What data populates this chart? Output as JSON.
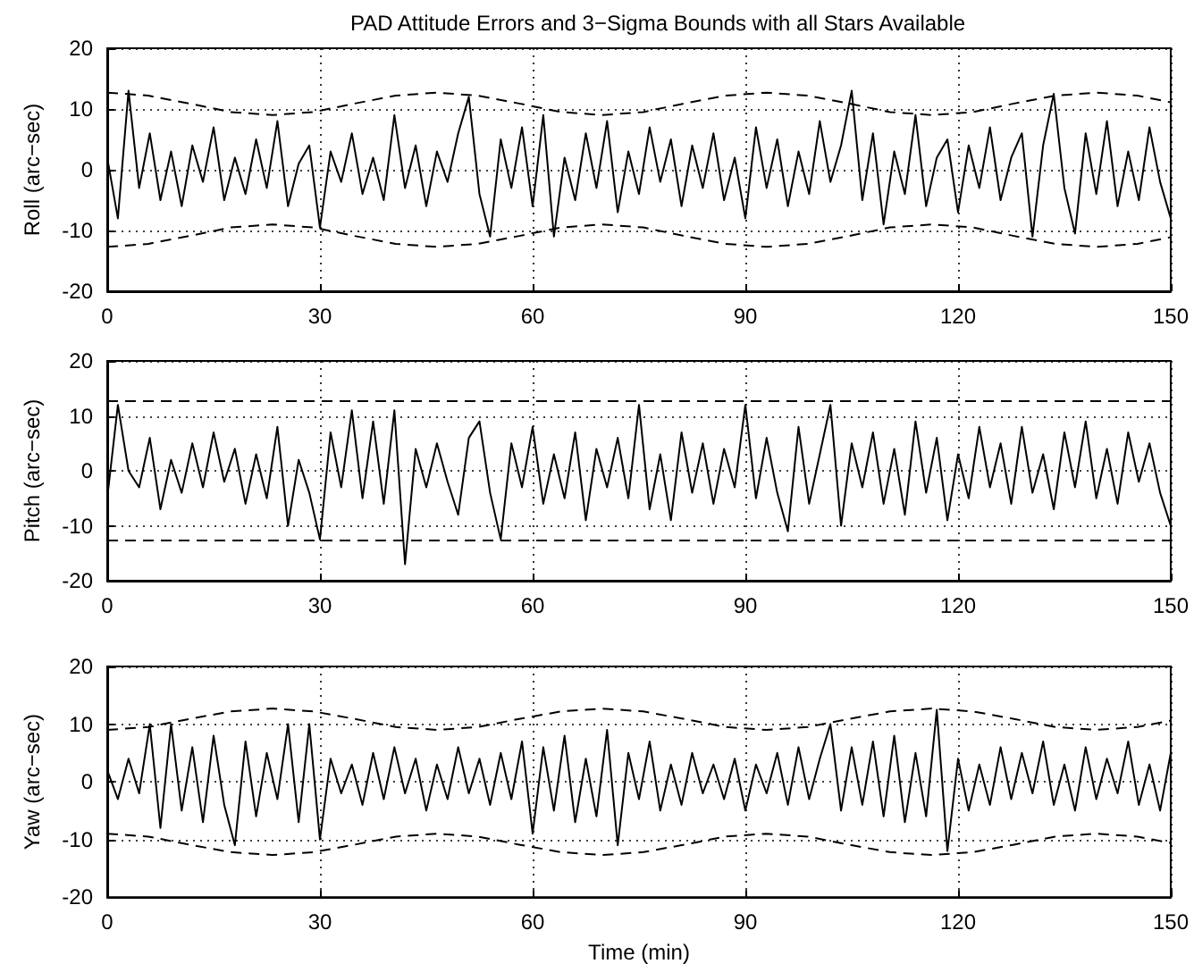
{
  "chart_data": [
    {
      "type": "line",
      "title": "PAD Attitude Errors and 3−Sigma Bounds with all Stars Available",
      "ylabel": "Roll (arc−sec)",
      "xlim": [
        0,
        150
      ],
      "xticks": [
        0,
        30,
        60,
        90,
        120,
        150
      ],
      "ylim": [
        -20,
        20
      ],
      "yticks": [
        -20,
        -10,
        0,
        10,
        20
      ],
      "grid": true,
      "marker": "none",
      "x": [
        0,
        1.5,
        3,
        4.5,
        6,
        7.5,
        9,
        10.5,
        12,
        13.5,
        15,
        16.5,
        18,
        19.5,
        21,
        22.5,
        24,
        25.5,
        27,
        28.5,
        30,
        31.5,
        33,
        34.5,
        36,
        37.5,
        39,
        40.5,
        42,
        43.5,
        45,
        46.5,
        48,
        49.5,
        51,
        52.5,
        54,
        55.5,
        57,
        58.5,
        60,
        61.5,
        63,
        64.5,
        66,
        67.5,
        69,
        70.5,
        72,
        73.5,
        75,
        76.5,
        78,
        79.5,
        81,
        82.5,
        84,
        85.5,
        87,
        88.5,
        90,
        91.5,
        93,
        94.5,
        96,
        97.5,
        99,
        100.5,
        102,
        103.5,
        105,
        106.5,
        108,
        109.5,
        111,
        112.5,
        114,
        115.5,
        117,
        118.5,
        120,
        121.5,
        123,
        124.5,
        126,
        127.5,
        129,
        130.5,
        132,
        133.5,
        135,
        136.5,
        138,
        139.5,
        141,
        142.5,
        144,
        145.5,
        147,
        148.5,
        150
      ],
      "series": [
        {
          "color": "#000000",
          "line_style": "solid",
          "values": [
            2,
            -8,
            13,
            -3,
            6,
            -5,
            3,
            -6,
            4,
            -2,
            7,
            -5,
            2,
            -4,
            5,
            -3,
            8,
            -6,
            1,
            4,
            -9.5,
            3,
            -2,
            6,
            -4,
            2,
            -5,
            9,
            -3,
            4,
            -6,
            3,
            -2,
            6,
            12,
            -4,
            -11,
            5,
            -3,
            7,
            -6,
            9,
            -11,
            2,
            -5,
            6,
            -3,
            8,
            -7,
            3,
            -4,
            7,
            -2,
            5,
            -6,
            4,
            -3,
            6,
            -5,
            2,
            -8,
            7,
            -3,
            5,
            -6,
            3,
            -4,
            8,
            -2,
            4,
            13,
            -5,
            6,
            -9,
            3,
            -4,
            9,
            -6,
            2,
            5,
            -7,
            4,
            -3,
            7,
            -5,
            2,
            6,
            -11,
            4,
            12.5,
            -3,
            -10.5,
            6,
            -4,
            8,
            -6,
            3,
            -5,
            7,
            -2,
            -8
          ]
        },
        {
          "color": "#000000",
          "line_style": "dashed",
          "x": [
            0,
            5.8,
            11.6,
            17.4,
            23.3,
            29.1,
            34.9,
            40.7,
            46.5,
            52.3,
            58.1,
            64,
            69.8,
            75.6,
            81.4,
            87.2,
            93,
            98.8,
            104.6,
            110.4,
            116.3,
            122.1,
            127.9,
            133.7,
            139.5,
            145.3,
            150
          ],
          "values": [
            12.7,
            12.2,
            10.9,
            9.5,
            9,
            9.5,
            10.9,
            12.2,
            12.7,
            12.2,
            10.9,
            9.5,
            9,
            9.5,
            10.9,
            12.2,
            12.7,
            12.2,
            10.9,
            9.5,
            9,
            9.5,
            10.9,
            12.2,
            12.7,
            12.2,
            11.1
          ]
        },
        {
          "color": "#000000",
          "line_style": "dashed",
          "x": [
            0,
            5.8,
            11.6,
            17.4,
            23.3,
            29.1,
            34.9,
            40.7,
            46.5,
            52.3,
            58.1,
            64,
            69.8,
            75.6,
            81.4,
            87.2,
            93,
            98.8,
            104.6,
            110.4,
            116.3,
            122.1,
            127.9,
            133.7,
            139.5,
            145.3,
            150
          ],
          "values": [
            -12.7,
            -12.2,
            -10.9,
            -9.5,
            -9,
            -9.5,
            -10.9,
            -12.2,
            -12.7,
            -12.2,
            -10.9,
            -9.5,
            -9,
            -9.5,
            -10.9,
            -12.2,
            -12.7,
            -12.2,
            -10.9,
            -9.5,
            -9,
            -9.5,
            -10.9,
            -12.2,
            -12.7,
            -12.2,
            -11.1
          ]
        }
      ]
    },
    {
      "type": "line",
      "ylabel": "Pitch (arc−sec)",
      "xlim": [
        0,
        150
      ],
      "xticks": [
        0,
        30,
        60,
        90,
        120,
        150
      ],
      "ylim": [
        -20,
        20
      ],
      "yticks": [
        -20,
        -10,
        0,
        10,
        20
      ],
      "grid": true,
      "marker": "none",
      "x": [
        0,
        1.5,
        3,
        4.5,
        6,
        7.5,
        9,
        10.5,
        12,
        13.5,
        15,
        16.5,
        18,
        19.5,
        21,
        22.5,
        24,
        25.5,
        27,
        28.5,
        30,
        31.5,
        33,
        34.5,
        36,
        37.5,
        39,
        40.5,
        42,
        43.5,
        45,
        46.5,
        48,
        49.5,
        51,
        52.5,
        54,
        55.5,
        57,
        58.5,
        60,
        61.5,
        63,
        64.5,
        66,
        67.5,
        69,
        70.5,
        72,
        73.5,
        75,
        76.5,
        78,
        79.5,
        81,
        82.5,
        84,
        85.5,
        87,
        88.5,
        90,
        91.5,
        93,
        94.5,
        96,
        97.5,
        99,
        100.5,
        102,
        103.5,
        105,
        106.5,
        108,
        109.5,
        111,
        112.5,
        114,
        115.5,
        117,
        118.5,
        120,
        121.5,
        123,
        124.5,
        126,
        127.5,
        129,
        130.5,
        132,
        133.5,
        135,
        136.5,
        138,
        139.5,
        141,
        142.5,
        144,
        145.5,
        147,
        148.5,
        150
      ],
      "series": [
        {
          "color": "#000000",
          "line_style": "solid",
          "values": [
            -5,
            12,
            0,
            -3,
            6,
            -7,
            2,
            -4,
            5,
            -3,
            7,
            -2,
            4,
            -6,
            3,
            -5,
            8,
            -10,
            2,
            -4,
            -12.5,
            7,
            -3,
            11,
            -5,
            9,
            -6,
            11,
            -17,
            4,
            -3,
            5,
            -2,
            -8,
            6,
            9,
            -4,
            -12.5,
            5,
            -3,
            8,
            -6,
            3,
            -5,
            7,
            -9,
            4,
            -3,
            6,
            -5,
            12,
            -7,
            3,
            -9,
            7,
            -4,
            5,
            -6,
            4,
            -3,
            12,
            -5,
            6,
            -4,
            -11,
            8,
            -6,
            3,
            12,
            -10,
            5,
            -3,
            7,
            -6,
            4,
            -8,
            9,
            -4,
            6,
            -9,
            3,
            -5,
            8,
            -3,
            5,
            -6,
            8,
            -4,
            3,
            -7,
            7,
            -3,
            9,
            -5,
            4,
            -6,
            7,
            -2,
            5,
            -4,
            -10
          ]
        },
        {
          "color": "#000000",
          "line_style": "dashed",
          "x": [
            0,
            150
          ],
          "values": [
            12.7,
            12.7
          ]
        },
        {
          "color": "#000000",
          "line_style": "dashed",
          "x": [
            0,
            150
          ],
          "values": [
            -12.7,
            -12.7
          ]
        }
      ]
    },
    {
      "type": "line",
      "ylabel": "Yaw (arc−sec)",
      "xlabel": "Time (min)",
      "xlim": [
        0,
        150
      ],
      "xticks": [
        0,
        30,
        60,
        90,
        120,
        150
      ],
      "ylim": [
        -20,
        20
      ],
      "yticks": [
        -20,
        -10,
        0,
        10,
        20
      ],
      "grid": true,
      "marker": "none",
      "x": [
        0,
        1.5,
        3,
        4.5,
        6,
        7.5,
        9,
        10.5,
        12,
        13.5,
        15,
        16.5,
        18,
        19.5,
        21,
        22.5,
        24,
        25.5,
        27,
        28.5,
        30,
        31.5,
        33,
        34.5,
        36,
        37.5,
        39,
        40.5,
        42,
        43.5,
        45,
        46.5,
        48,
        49.5,
        51,
        52.5,
        54,
        55.5,
        57,
        58.5,
        60,
        61.5,
        63,
        64.5,
        66,
        67.5,
        69,
        70.5,
        72,
        73.5,
        75,
        76.5,
        78,
        79.5,
        81,
        82.5,
        84,
        85.5,
        87,
        88.5,
        90,
        91.5,
        93,
        94.5,
        96,
        97.5,
        99,
        100.5,
        102,
        103.5,
        105,
        106.5,
        108,
        109.5,
        111,
        112.5,
        114,
        115.5,
        117,
        118.5,
        120,
        121.5,
        123,
        124.5,
        126,
        127.5,
        129,
        130.5,
        132,
        133.5,
        135,
        136.5,
        138,
        139.5,
        141,
        142.5,
        144,
        145.5,
        147,
        148.5,
        150
      ],
      "series": [
        {
          "color": "#000000",
          "line_style": "solid",
          "values": [
            2,
            -3,
            4,
            -2,
            10,
            -8,
            10,
            -5,
            6,
            -7,
            8,
            -4,
            -11,
            7,
            -6,
            5,
            -3,
            10,
            -7,
            10,
            -10,
            4,
            -2,
            3,
            -4,
            5,
            -3,
            6,
            -2,
            4,
            -5,
            3,
            -3,
            6,
            -2,
            4,
            -4,
            5,
            -3,
            7,
            -9,
            6,
            -5,
            8,
            -7,
            4,
            -6,
            9,
            -11,
            5,
            -3,
            7,
            -5,
            3,
            -4,
            5,
            -2,
            3,
            -3,
            4,
            -5,
            3,
            -2,
            5,
            -4,
            6,
            -3,
            4,
            10,
            -5,
            6,
            -4,
            7,
            -6,
            8,
            -7,
            5,
            -6,
            12.5,
            -12,
            4,
            -5,
            3,
            -4,
            6,
            -3,
            5,
            -2,
            7,
            -4,
            3,
            -5,
            6,
            -3,
            4,
            -2,
            7,
            -4,
            3,
            -5,
            5
          ]
        },
        {
          "color": "#000000",
          "line_style": "dashed",
          "x": [
            0,
            5.8,
            11.6,
            17.4,
            23.3,
            29.1,
            34.9,
            40.7,
            46.5,
            52.3,
            58.1,
            64,
            69.8,
            75.6,
            81.4,
            87.2,
            93,
            98.8,
            104.6,
            110.4,
            116.3,
            122.1,
            127.9,
            133.7,
            139.5,
            145.3,
            150
          ],
          "values": [
            9,
            9.5,
            10.9,
            12.2,
            12.7,
            12.2,
            10.9,
            9.5,
            9,
            9.5,
            10.9,
            12.2,
            12.7,
            12.2,
            10.9,
            9.5,
            9,
            9.5,
            10.9,
            12.2,
            12.7,
            12.2,
            10.9,
            9.5,
            9,
            9.5,
            10.6
          ]
        },
        {
          "color": "#000000",
          "line_style": "dashed",
          "x": [
            0,
            5.8,
            11.6,
            17.4,
            23.3,
            29.1,
            34.9,
            40.7,
            46.5,
            52.3,
            58.1,
            64,
            69.8,
            75.6,
            81.4,
            87.2,
            93,
            98.8,
            104.6,
            110.4,
            116.3,
            122.1,
            127.9,
            133.7,
            139.5,
            145.3,
            150
          ],
          "values": [
            -9,
            -9.5,
            -10.9,
            -12.2,
            -12.7,
            -12.2,
            -10.9,
            -9.5,
            -9,
            -9.5,
            -10.9,
            -12.2,
            -12.7,
            -12.2,
            -10.9,
            -9.5,
            -9,
            -9.5,
            -10.9,
            -12.2,
            -12.7,
            -12.2,
            -10.9,
            -9.5,
            -9,
            -9.5,
            -10.6
          ]
        }
      ]
    }
  ]
}
